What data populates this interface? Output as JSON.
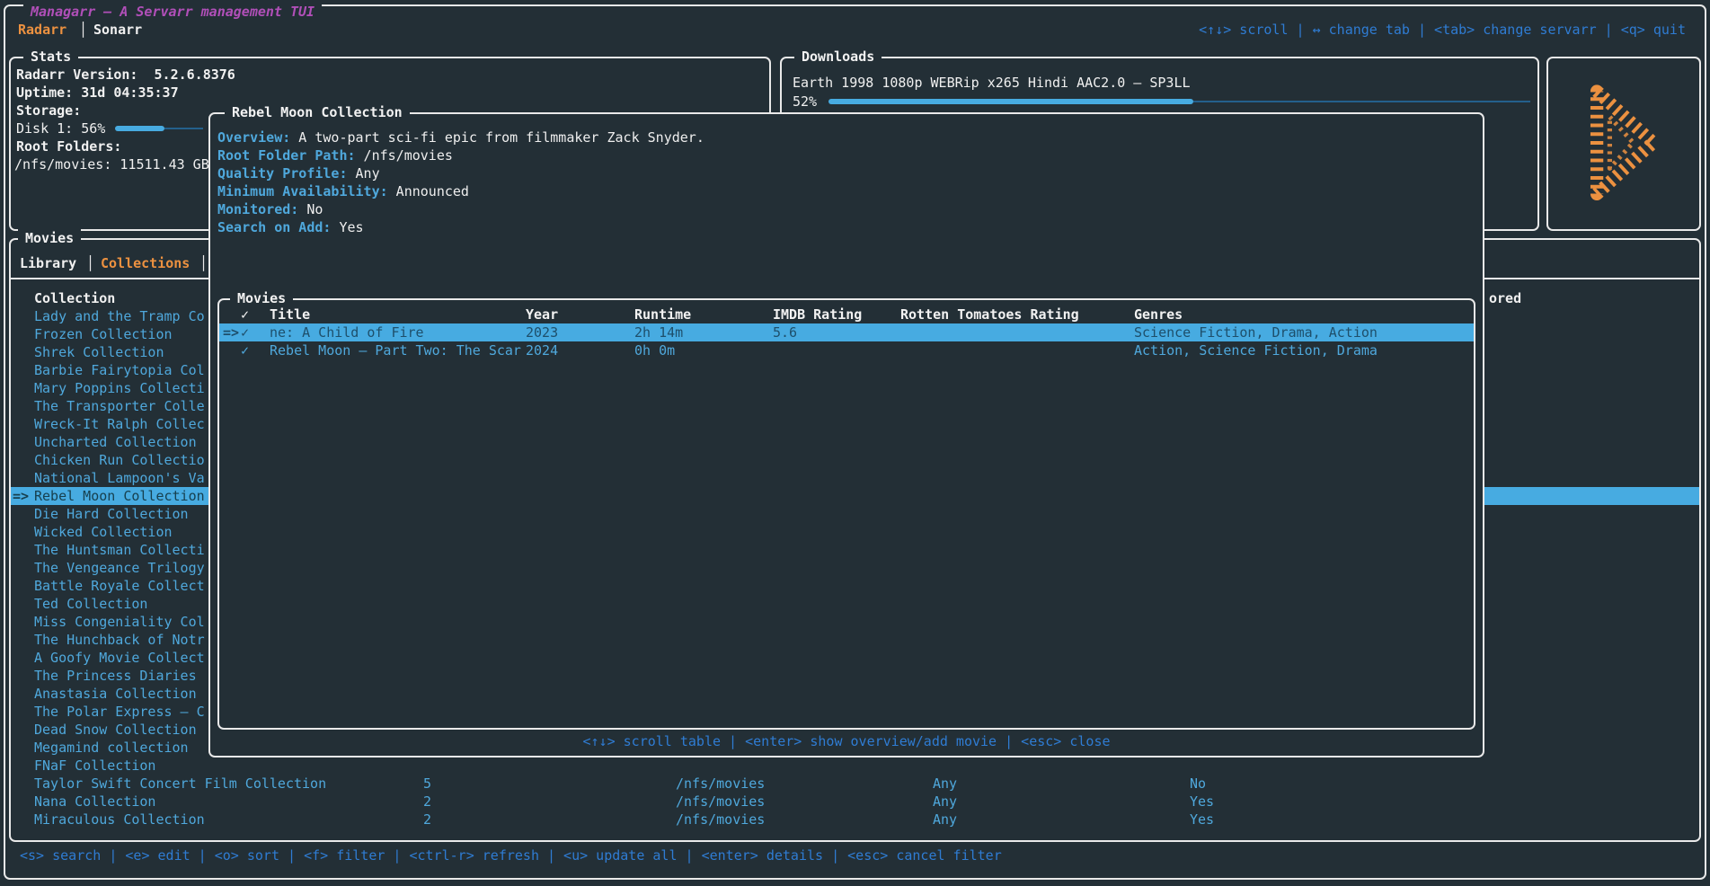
{
  "app": {
    "title": "Managarr – A Servarr management TUI",
    "servarr_tabs": [
      {
        "label": "Radarr",
        "active": true
      },
      {
        "label": "Sonarr",
        "active": false
      }
    ],
    "tab_separator": "│",
    "top_keybinds": "<↑↓> scroll | ↔ change tab | <tab> change servarr | <q> quit",
    "bottom_keybinds": "<s> search | <e> edit | <o> sort | <f> filter | <ctrl-r> refresh | <u> update all | <enter> details | <esc> cancel filter"
  },
  "stats": {
    "title": "Stats",
    "version_line": "Radarr Version:  5.2.6.8376",
    "uptime_line": "Uptime: 31d 04:35:37",
    "storage_label": "Storage:",
    "disk_line": "Disk 1: 56%",
    "disk_percent": 56,
    "root_folders_label": "Root Folders:",
    "root_folder_line": "/nfs/movies: 11511.43 GB"
  },
  "downloads": {
    "title": "Downloads",
    "item_title": "Earth 1998 1080p WEBRip x265 Hindi AAC2.0 – SP3LL",
    "percent_label": "52%",
    "percent": 52
  },
  "logo": {
    "name": "managarr-play-logo",
    "color": "#ec9140"
  },
  "movies": {
    "title": "Movies",
    "tabs": [
      {
        "label": "Library",
        "active": false
      },
      {
        "label": "Collections",
        "active": true
      }
    ],
    "collection_header": "Collection",
    "monitored_header_fragment": "ored",
    "selection_arrow": "=>",
    "items": [
      {
        "label": "Lady and the Tramp Co",
        "selected": false
      },
      {
        "label": "Frozen Collection",
        "selected": false
      },
      {
        "label": "Shrek Collection",
        "selected": false
      },
      {
        "label": "Barbie Fairytopia Col",
        "selected": false
      },
      {
        "label": "Mary Poppins Collecti",
        "selected": false
      },
      {
        "label": "The Transporter Colle",
        "selected": false
      },
      {
        "label": "Wreck-It Ralph Collec",
        "selected": false
      },
      {
        "label": "Uncharted Collection",
        "selected": false
      },
      {
        "label": "Chicken Run Collectio",
        "selected": false
      },
      {
        "label": "National Lampoon's Va",
        "selected": false
      },
      {
        "label": "Rebel Moon Collection",
        "selected": true
      },
      {
        "label": "Die Hard Collection",
        "selected": false
      },
      {
        "label": "Wicked Collection",
        "selected": false
      },
      {
        "label": "The Huntsman Collecti",
        "selected": false
      },
      {
        "label": "The Vengeance Trilogy",
        "selected": false
      },
      {
        "label": "Battle Royale Collect",
        "selected": false
      },
      {
        "label": "Ted Collection",
        "selected": false
      },
      {
        "label": "Miss Congeniality Col",
        "selected": false
      },
      {
        "label": "The Hunchback of Notr",
        "selected": false
      },
      {
        "label": "A Goofy Movie Collect",
        "selected": false
      },
      {
        "label": "The Princess Diaries",
        "selected": false
      },
      {
        "label": "Anastasia Collection",
        "selected": false
      },
      {
        "label": "The Polar Express – C",
        "selected": false
      },
      {
        "label": "Dead Snow Collection",
        "selected": false
      },
      {
        "label": "Megamind collection",
        "selected": false
      },
      {
        "label": "FNaF Collection",
        "selected": false
      },
      {
        "label": "Taylor Swift Concert Film Collection",
        "selected": false,
        "extra": [
          "5",
          "/nfs/movies",
          "Any",
          "No"
        ]
      },
      {
        "label": "Nana Collection",
        "selected": false,
        "extra": [
          "2",
          "/nfs/movies",
          "Any",
          "Yes"
        ]
      },
      {
        "label": "Miraculous Collection",
        "selected": false,
        "extra": [
          "2",
          "/nfs/movies",
          "Any",
          "Yes"
        ]
      }
    ]
  },
  "modal": {
    "title": "Rebel Moon Collection",
    "fields": [
      {
        "label": "Overview:",
        "value": "A two-part sci-fi epic from filmmaker Zack Snyder."
      },
      {
        "label": "Root Folder Path:",
        "value": "/nfs/movies"
      },
      {
        "label": "Quality Profile:",
        "value": "Any"
      },
      {
        "label": "Minimum Availability:",
        "value": "Announced"
      },
      {
        "label": "Monitored:",
        "value": "No"
      },
      {
        "label": "Search on Add:",
        "value": "Yes"
      }
    ],
    "movies_table": {
      "title": "Movies",
      "headers": [
        "✓",
        "Title",
        "Year",
        "Runtime",
        "IMDB Rating",
        "Rotten Tomatoes Rating",
        "Genres"
      ],
      "rows": [
        {
          "selected": true,
          "arrow": "=>",
          "check": "✓",
          "title": "ne: A Child of Fire",
          "year": "2023",
          "runtime": "2h 14m",
          "imdb_rating": "5.6",
          "rotten_tomatoes_rating": "",
          "genres": "Science Fiction, Drama, Action"
        },
        {
          "selected": false,
          "arrow": "",
          "check": "✓",
          "title": "Rebel Moon – Part Two: The Scar",
          "year": "2024",
          "runtime": "0h 0m",
          "imdb_rating": "",
          "rotten_tomatoes_rating": "",
          "genres": "Action, Science Fiction, Drama"
        }
      ],
      "footer_keybinds": "<↑↓> scroll table | <enter> show overview/add movie | <esc> close"
    }
  },
  "colors": {
    "background": "#232f36",
    "panel_border": "#e9e9e9",
    "text_primary": "#eeeeee",
    "accent_blue": "#4fa8dc",
    "keybind_blue": "#2f7cd3",
    "accent_orange": "#ec9140",
    "title_magenta": "#b04fb8",
    "selection_background": "#47abe1",
    "selection_text": "#17404f",
    "progress_blue": "#47abe1"
  }
}
